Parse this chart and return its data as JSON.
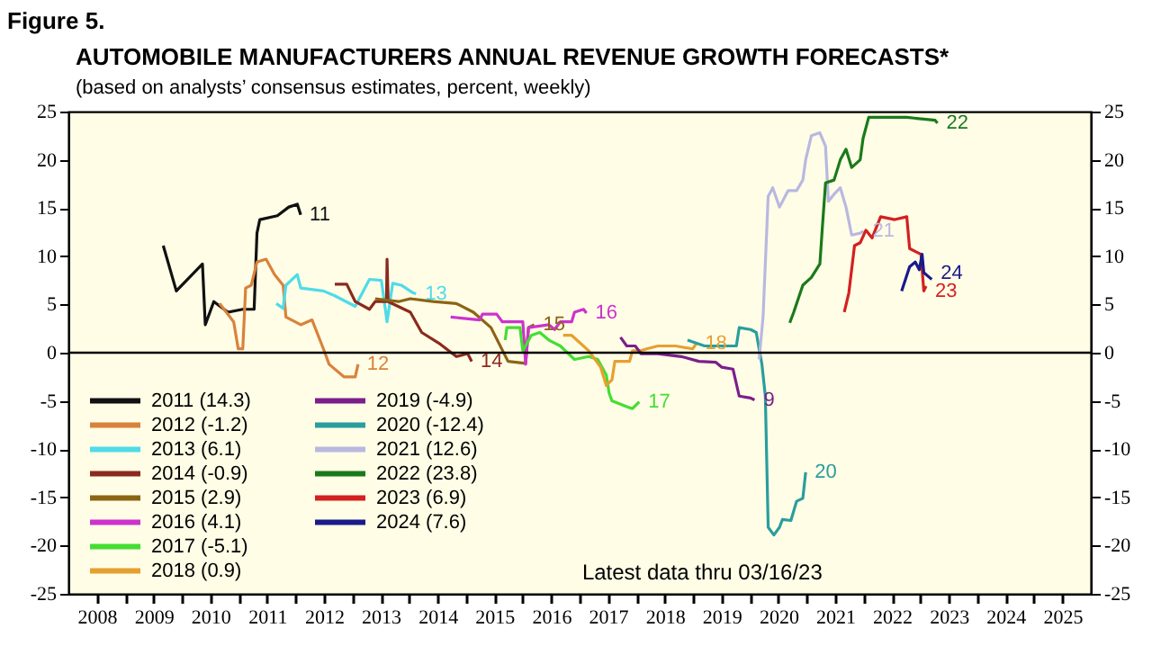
{
  "chart_data": {
    "type": "line",
    "title": "AUTOMOBILE MANUFACTURERS ANNUAL REVENUE GROWTH FORECASTS*",
    "subtitle": "(based on analysts’ consensus estimates, percent, weekly)",
    "xlim": [
      2008,
      2026
    ],
    "xticks": [
      {
        "value": 2008.5,
        "label": "2008"
      },
      {
        "value": 2009,
        "label": null
      },
      {
        "value": 2009.5,
        "label": "2009"
      },
      {
        "value": 2010,
        "label": null
      },
      {
        "value": 2010.5,
        "label": "2010"
      },
      {
        "value": 2011,
        "label": null
      },
      {
        "value": 2011.5,
        "label": "2011"
      },
      {
        "value": 2012,
        "label": null
      },
      {
        "value": 2012.5,
        "label": "2012"
      },
      {
        "value": 2013,
        "label": null
      },
      {
        "value": 2013.5,
        "label": "2013"
      },
      {
        "value": 2014,
        "label": null
      },
      {
        "value": 2014.5,
        "label": "2014"
      },
      {
        "value": 2015,
        "label": null
      },
      {
        "value": 2015.5,
        "label": "2015"
      },
      {
        "value": 2016,
        "label": null
      },
      {
        "value": 2016.5,
        "label": "2016"
      },
      {
        "value": 2017,
        "label": null
      },
      {
        "value": 2017.5,
        "label": "2017"
      },
      {
        "value": 2018,
        "label": null
      },
      {
        "value": 2018.5,
        "label": "2018"
      },
      {
        "value": 2019,
        "label": null
      },
      {
        "value": 2019.5,
        "label": "2019"
      },
      {
        "value": 2020,
        "label": null
      },
      {
        "value": 2020.5,
        "label": "2020"
      },
      {
        "value": 2021,
        "label": null
      },
      {
        "value": 2021.5,
        "label": "2021"
      },
      {
        "value": 2022,
        "label": null
      },
      {
        "value": 2022.5,
        "label": "2022"
      },
      {
        "value": 2023,
        "label": null
      },
      {
        "value": 2023.5,
        "label": "2023"
      },
      {
        "value": 2024,
        "label": null
      },
      {
        "value": 2024.5,
        "label": "2024"
      },
      {
        "value": 2025,
        "label": null
      },
      {
        "value": 2025.5,
        "label": "2025"
      }
    ],
    "ylim": [
      -25,
      25
    ],
    "yticks": [
      -25,
      -20,
      -15,
      -10,
      -5,
      0,
      5,
      10,
      15,
      20,
      25
    ],
    "y2lim": [
      -25,
      25
    ],
    "y2ticks": [
      -25,
      -20,
      -15,
      -10,
      -5,
      0,
      5,
      10,
      15,
      20,
      25
    ],
    "grid": false,
    "legend": "bottom left",
    "ref_lines": [
      {
        "axis": "y",
        "value": 0,
        "color": "#000000"
      }
    ],
    "series": [
      {
        "name": "2011 (14.3)",
        "color": "#111111",
        "x": [
          2009.67,
          2009.9,
          2010.36,
          2010.41,
          2010.56,
          2010.81,
          2011.07,
          2011.27,
          2011.32,
          2011.37,
          2011.68,
          2011.88,
          2012.03,
          2012.09
        ],
        "values": [
          11.1,
          6.4,
          9.2,
          2.9,
          5.3,
          4.2,
          4.5,
          4.5,
          12.4,
          13.8,
          14.2,
          15.1,
          15.4,
          14.3
        ]
      },
      {
        "name": "2012 (-1.2)",
        "color": "#d9823b",
        "x": [
          2010.66,
          2010.91,
          2010.99,
          2011.07,
          2011.12,
          2011.22,
          2011.32,
          2011.48,
          2011.63,
          2011.78,
          2011.83,
          2012.09,
          2012.29,
          2012.49,
          2012.59,
          2012.85,
          2013.05,
          2013.1
        ],
        "values": [
          5.1,
          3.2,
          0.4,
          0.4,
          6.7,
          7.0,
          9.4,
          9.7,
          8.1,
          7.0,
          3.7,
          2.9,
          3.4,
          0.4,
          -1.2,
          -2.5,
          -2.5,
          -1.2
        ]
      },
      {
        "name": "2013 (6.1)",
        "color": "#4fdbe8",
        "x": [
          2011.66,
          2011.78,
          2011.83,
          2012.03,
          2012.09,
          2012.49,
          2012.69,
          2013.05,
          2013.3,
          2013.51,
          2013.61,
          2013.71,
          2013.86,
          2014.07,
          2014.12
        ],
        "values": [
          5.1,
          4.6,
          7.0,
          8.1,
          6.7,
          6.4,
          5.9,
          4.8,
          7.6,
          7.5,
          3.2,
          7.2,
          7.0,
          6.2,
          6.1
        ]
      },
      {
        "name": "2014 (-0.9)",
        "color": "#8b2a1e",
        "x": [
          2012.69,
          2012.9,
          2013.05,
          2013.3,
          2013.4,
          2013.6,
          2013.61,
          2013.63,
          2014.02,
          2014.22,
          2014.52,
          2014.83,
          2015.03,
          2015.1
        ],
        "values": [
          7.1,
          7.1,
          5.3,
          4.5,
          5.3,
          5.3,
          9.7,
          5.3,
          4.2,
          2.1,
          1.0,
          -0.4,
          -0.1,
          -0.9
        ]
      },
      {
        "name": "2015 (2.9)",
        "color": "#8b6414",
        "x": [
          2013.4,
          2013.81,
          2014.02,
          2014.42,
          2014.83,
          2015.13,
          2015.44,
          2015.74,
          2016.05,
          2016.1,
          2016.2
        ],
        "values": [
          5.6,
          5.3,
          5.6,
          5.3,
          5.1,
          4.2,
          2.6,
          -0.9,
          -1.1,
          2.6,
          2.9
        ]
      },
      {
        "name": "2016 (4.1)",
        "color": "#cc33cc",
        "x": [
          2014.73,
          2015.24,
          2015.29,
          2015.54,
          2015.64,
          2016.0,
          2016.05,
          2016.1,
          2016.46,
          2016.56,
          2016.66,
          2016.86,
          2016.91,
          2017.07,
          2017.12
        ],
        "values": [
          3.7,
          3.4,
          4.0,
          4.0,
          3.2,
          3.2,
          -1.2,
          2.6,
          2.9,
          2.4,
          3.2,
          3.2,
          4.2,
          4.5,
          4.1
        ]
      },
      {
        "name": "2017 (-5.1)",
        "color": "#44dd33",
        "x": [
          2015.69,
          2015.72,
          2015.95,
          2016.0,
          2016.15,
          2016.3,
          2016.46,
          2016.66,
          2016.91,
          2017.16,
          2017.32,
          2017.47,
          2017.52,
          2017.57,
          2017.83,
          2017.93,
          2018.05
        ],
        "values": [
          1.3,
          2.6,
          2.6,
          0.2,
          1.8,
          2.1,
          1.3,
          0.7,
          -0.7,
          -0.4,
          -0.7,
          -2.3,
          -4.2,
          -5.0,
          -5.6,
          -5.8,
          -5.1
        ]
      },
      {
        "name": "2018 (0.9)",
        "color": "#e6a030",
        "x": [
          2016.71,
          2016.86,
          2017.01,
          2017.16,
          2017.37,
          2017.47,
          2017.57,
          2017.62,
          2017.88,
          2017.93,
          2018.08,
          2018.18,
          2018.38,
          2018.69,
          2018.99,
          2019.05
        ],
        "values": [
          1.8,
          1.8,
          1.0,
          0.2,
          -1.5,
          -3.4,
          -2.8,
          -0.9,
          -0.9,
          0.2,
          0.2,
          0.4,
          0.7,
          0.7,
          0.4,
          0.9
        ]
      },
      {
        "name": "2019 (-4.9)",
        "color": "#7b1f8b",
        "x": [
          2017.72,
          2017.83,
          2017.98,
          2018.08,
          2018.38,
          2018.79,
          2019.1,
          2019.4,
          2019.5,
          2019.7,
          2019.81,
          2020.01,
          2020.08
        ],
        "values": [
          1.6,
          0.7,
          0.7,
          -0.1,
          -0.1,
          -0.4,
          -0.9,
          -1.0,
          -1.5,
          -1.7,
          -4.5,
          -4.7,
          -4.9
        ]
      },
      {
        "name": "2020 (-12.4)",
        "color": "#2a9d9d",
        "x": [
          2018.9,
          2019.2,
          2019.76,
          2019.81,
          2020.01,
          2020.11,
          2020.16,
          2020.21,
          2020.27,
          2020.32,
          2020.42,
          2020.52,
          2020.57,
          2020.72,
          2020.82,
          2020.93,
          2020.98
        ],
        "values": [
          1.3,
          0.7,
          0.7,
          2.6,
          2.4,
          2.1,
          0.4,
          -1.2,
          -4.5,
          -18.1,
          -18.9,
          -18.1,
          -17.3,
          -17.4,
          -15.4,
          -15.1,
          -12.4
        ]
      },
      {
        "name": "2021 (12.6)",
        "color": "#b8b8e0",
        "x": [
          2020.16,
          2020.23,
          2020.32,
          2020.4,
          2020.52,
          2020.67,
          2020.82,
          2020.93,
          2020.98,
          2021.08,
          2021.23,
          2021.33,
          2021.38,
          2021.49,
          2021.59,
          2021.69,
          2021.79,
          2021.94,
          2022.0
        ],
        "values": [
          -0.7,
          3.7,
          16.2,
          17.1,
          15.1,
          16.8,
          16.8,
          17.9,
          20.0,
          22.5,
          22.8,
          21.4,
          15.7,
          16.5,
          17.1,
          15.1,
          12.2,
          12.4,
          12.6
        ]
      },
      {
        "name": "2022 (23.8)",
        "color": "#1a7a1a",
        "x": [
          2020.7,
          2020.77,
          2020.93,
          2021.08,
          2021.23,
          2021.28,
          2021.33,
          2021.48,
          2021.59,
          2021.69,
          2021.79,
          2021.94,
          2021.99,
          2022.09,
          2022.35,
          2022.76,
          2023.26,
          2023.3
        ],
        "values": [
          3.1,
          4.2,
          7.0,
          7.8,
          9.2,
          13.5,
          17.6,
          17.9,
          20.0,
          21.1,
          19.2,
          20.0,
          22.2,
          24.4,
          24.4,
          24.4,
          24.1,
          23.8
        ]
      },
      {
        "name": "2023 (6.9)",
        "color": "#d42020",
        "x": [
          2021.66,
          2021.74,
          2021.84,
          2021.94,
          2022.04,
          2022.15,
          2022.3,
          2022.55,
          2022.76,
          2022.81,
          2023.01,
          2023.06,
          2023.1
        ],
        "values": [
          4.2,
          6.2,
          11.1,
          11.4,
          12.7,
          11.9,
          14.1,
          13.8,
          14.1,
          10.8,
          10.2,
          6.4,
          6.9
        ]
      },
      {
        "name": "2024 (7.6)",
        "color": "#1a1a8b",
        "x": [
          2022.67,
          2022.81,
          2022.91,
          2022.98,
          2023.03,
          2023.06,
          2023.16,
          2023.2
        ],
        "values": [
          6.4,
          8.9,
          9.4,
          8.6,
          10.2,
          8.3,
          7.8,
          7.6
        ]
      }
    ],
    "annotations": [
      {
        "text": "11",
        "x": 2012.09,
        "y": 14.3
      },
      {
        "text": "12",
        "x": 2013.1,
        "y": -1.2
      },
      {
        "text": "13",
        "x": 2014.12,
        "y": 6.1
      },
      {
        "text": "14",
        "x": 2015.1,
        "y": -0.9
      },
      {
        "text": "15",
        "x": 2016.2,
        "y": 2.9
      },
      {
        "text": "16",
        "x": 2017.12,
        "y": 4.1
      },
      {
        "text": "17",
        "x": 2018.05,
        "y": -5.1
      },
      {
        "text": "18",
        "x": 2019.05,
        "y": 0.9
      },
      {
        "text": "9",
        "x": 2020.08,
        "y": -4.9
      },
      {
        "text": "20",
        "x": 2020.98,
        "y": -12.4
      },
      {
        "text": "21",
        "x": 2022.0,
        "y": 12.6
      },
      {
        "text": "22",
        "x": 2023.3,
        "y": 23.8
      },
      {
        "text": "23",
        "x": 2023.1,
        "y": 6.9
      },
      {
        "text": "24",
        "x": 2023.2,
        "y": 7.6
      },
      "Figure 5.",
      "Latest data thru 03/16/23"
    ]
  }
}
